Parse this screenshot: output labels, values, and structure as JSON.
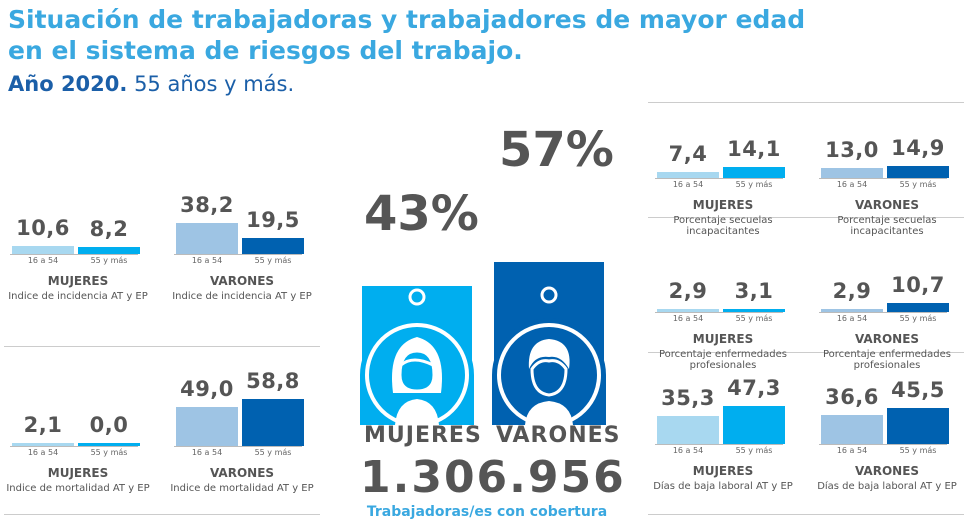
{
  "header": {
    "title_line1": "Situación de trabajadoras y trabajadores de mayor edad",
    "title_line2": "en el sistema de riesgos del trabajo.",
    "year": "Año 2020.",
    "age": "55 años y más."
  },
  "colors": {
    "title": "#3aa8e0",
    "subtitle": "#1b5fa8",
    "women_young": "#a8d8f0",
    "women_old": "#00aeef",
    "men_young": "#9ec4e4",
    "men_old": "#0061b0",
    "text": "#555555"
  },
  "center": {
    "women_pct": "43%",
    "men_pct": "57%",
    "women_label": "MUJERES",
    "men_label": "VARONES",
    "total": "1.306.956",
    "total_label": "Trabajadoras/es con cobertura"
  },
  "chart_data": [
    {
      "type": "bar",
      "panel": "incidencia-mujeres",
      "group": "MUJERES",
      "indicator": "Indice de incidencia AT y EP",
      "categories": [
        "16 a 54",
        "55 y más"
      ],
      "values": [
        10.6,
        8.2
      ],
      "value_labels": [
        "10,6",
        "8,2"
      ]
    },
    {
      "type": "bar",
      "panel": "incidencia-varones",
      "group": "VARONES",
      "indicator": "Indice de incidencia AT y EP",
      "categories": [
        "16 a 54",
        "55 y más"
      ],
      "values": [
        38.2,
        19.5
      ],
      "value_labels": [
        "38,2",
        "19,5"
      ]
    },
    {
      "type": "bar",
      "panel": "mortalidad-mujeres",
      "group": "MUJERES",
      "indicator": "Indice de mortalidad  AT y EP",
      "categories": [
        "16 a 54",
        "55 y más"
      ],
      "values": [
        2.1,
        0.0
      ],
      "value_labels": [
        "2,1",
        "0,0"
      ]
    },
    {
      "type": "bar",
      "panel": "mortalidad-varones",
      "group": "VARONES",
      "indicator": "Indice de mortalidad AT y EP",
      "categories": [
        "16 a 54",
        "55 y más"
      ],
      "values": [
        49.0,
        58.8
      ],
      "value_labels": [
        "49,0",
        "58,8"
      ]
    },
    {
      "type": "bar",
      "panel": "secuelas-mujeres",
      "group": "MUJERES",
      "indicator": "Porcentaje secuelas incapacitantes",
      "categories": [
        "16 a 54",
        "55 y más"
      ],
      "values": [
        7.4,
        14.1
      ],
      "value_labels": [
        "7,4",
        "14,1"
      ]
    },
    {
      "type": "bar",
      "panel": "secuelas-varones",
      "group": "VARONES",
      "indicator": "Porcentaje secuelas incapacitantes",
      "categories": [
        "16 a 54",
        "55 y más"
      ],
      "values": [
        13.0,
        14.9
      ],
      "value_labels": [
        "13,0",
        "14,9"
      ]
    },
    {
      "type": "bar",
      "panel": "ep-mujeres",
      "group": "MUJERES",
      "indicator": "Porcentaje enfermedades profesionales",
      "categories": [
        "16 a 54",
        "55 y más"
      ],
      "values": [
        2.9,
        3.1
      ],
      "value_labels": [
        "2,9",
        "3,1"
      ]
    },
    {
      "type": "bar",
      "panel": "ep-varones",
      "group": "VARONES",
      "indicator": "Porcentaje enfermedades profesionales",
      "categories": [
        "16 a 54",
        "55 y más"
      ],
      "values": [
        2.9,
        10.7
      ],
      "value_labels": [
        "2,9",
        "10,7"
      ]
    },
    {
      "type": "bar",
      "panel": "baja-mujeres",
      "group": "MUJERES",
      "indicator": "Días de baja laboral AT y EP",
      "categories": [
        "16 a 54",
        "55 y más"
      ],
      "values": [
        35.3,
        47.3
      ],
      "value_labels": [
        "35,3",
        "47,3"
      ]
    },
    {
      "type": "bar",
      "panel": "baja-varones",
      "group": "VARONES",
      "indicator": "Días de baja laboral AT y EP",
      "categories": [
        "16 a 54",
        "55 y más"
      ],
      "values": [
        36.6,
        45.5
      ],
      "value_labels": [
        "36,6",
        "45,5"
      ]
    },
    {
      "type": "bar",
      "panel": "cobertura",
      "categories": [
        "MUJERES",
        "VARONES"
      ],
      "values": [
        43,
        57
      ],
      "value_labels": [
        "43%",
        "57%"
      ]
    }
  ]
}
